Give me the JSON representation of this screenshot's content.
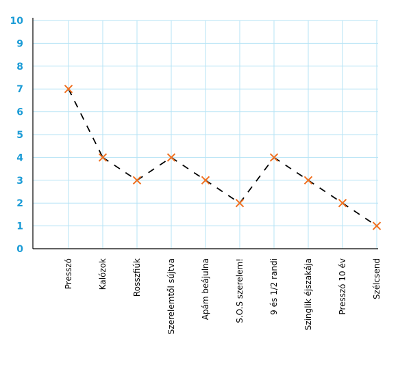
{
  "chart_data": {
    "type": "line",
    "title": "",
    "xlabel": "",
    "ylabel": "",
    "categories": [
      "Presszó",
      "Kalózok",
      "Rosszfiúk",
      "Szerelemtől sújtva",
      "Apám beájulna",
      "S.O.S szerelem!",
      "9 és 1/2 randi",
      "Szinglik éjszakája",
      "Presszó 10 év",
      "Szélcsend"
    ],
    "series": [
      {
        "values": [
          7,
          4,
          3,
          4,
          3,
          2,
          4,
          3,
          2,
          1
        ]
      }
    ],
    "ylim": [
      0,
      10
    ],
    "yticks": [
      "0",
      "1",
      "2",
      "3",
      "4",
      "5",
      "6",
      "7",
      "8",
      "9",
      "10"
    ],
    "grid": true,
    "line_style": "dashed",
    "colors": {
      "line": "#000000",
      "marker": "#f07020",
      "ytick": "#1a9bd6",
      "grid": "#b5e3f5"
    }
  }
}
